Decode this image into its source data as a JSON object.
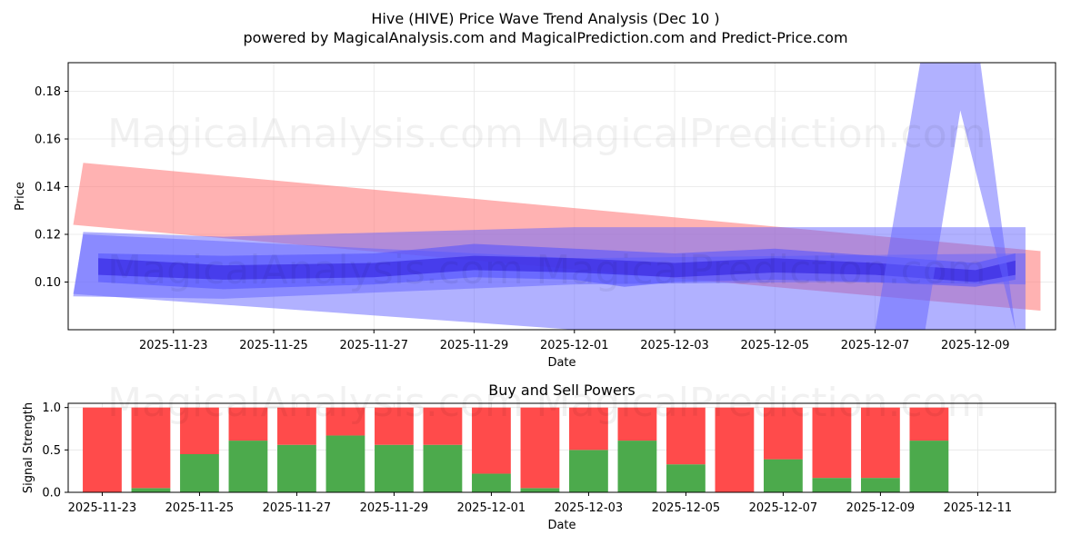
{
  "title_line1": "Hive (HIVE) Price Wave Trend Analysis (Dec 10 )",
  "title_line2": "powered by MagicalAnalysis.com and MagicalPrediction.com and Predict-Price.com",
  "watermarks": [
    "MagicalAnalysis.com",
    "MagicalPrediction.com"
  ],
  "colors": {
    "red_band": "#ff7f7f",
    "blue_band": "#6464ff",
    "buy": "#4caa4c",
    "sell": "#ff4b4b",
    "grid": "#e6e6e6"
  },
  "chart_data": [
    {
      "type": "area",
      "title": "",
      "xlabel": "Date",
      "ylabel": "Price",
      "x_start": "2025-11-21",
      "xlim": [
        -0.1,
        19.6
      ],
      "ylim": [
        0.08,
        0.192
      ],
      "xticks": [
        {
          "label": "2025-11-23",
          "x": 2
        },
        {
          "label": "2025-11-25",
          "x": 4
        },
        {
          "label": "2025-11-27",
          "x": 6
        },
        {
          "label": "2025-11-29",
          "x": 8
        },
        {
          "label": "2025-12-01",
          "x": 10
        },
        {
          "label": "2025-12-03",
          "x": 12
        },
        {
          "label": "2025-12-05",
          "x": 14
        },
        {
          "label": "2025-12-07",
          "x": 16
        },
        {
          "label": "2025-12-09",
          "x": 18
        }
      ],
      "yticks": [
        0.1,
        0.12,
        0.14,
        0.16,
        0.18
      ],
      "ytick_labels": [
        "0.10",
        "0.12",
        "0.14",
        "0.16",
        "0.18"
      ],
      "grid": true,
      "series": [
        {
          "name": "red trend band",
          "color": "#ff7f7f",
          "opacity": 0.6,
          "upper": [
            [
              0.2,
              0.15
            ],
            [
              19.3,
              0.113
            ]
          ],
          "lower": [
            [
              0.0,
              0.124
            ],
            [
              19.3,
              0.088
            ]
          ]
        },
        {
          "name": "blue wide band",
          "color": "#6464ff",
          "opacity": 0.5,
          "upper": [
            [
              0.2,
              0.121
            ],
            [
              3.0,
              0.119
            ],
            [
              10.0,
              0.123
            ],
            [
              19.0,
              0.123
            ]
          ],
          "lower": [
            [
              0.0,
              0.094
            ],
            [
              3.0,
              0.093
            ],
            [
              10.0,
              0.099
            ],
            [
              15.0,
              0.1
            ],
            [
              19.0,
              0.099
            ]
          ]
        },
        {
          "name": "blue outer range",
          "color": "#6464ff",
          "opacity": 0.5,
          "upper": [
            [
              0.2,
              0.12
            ],
            [
              10.0,
              0.11
            ],
            [
              19.0,
              0.112
            ]
          ],
          "lower": [
            [
              0.0,
              0.095
            ],
            [
              10.0,
              0.08
            ],
            [
              19.0,
              0.08
            ]
          ]
        },
        {
          "name": "blue inner wave",
          "color": "#5050ff",
          "opacity": 0.55,
          "upper": [
            [
              0.5,
              0.112
            ],
            [
              3.0,
              0.111
            ],
            [
              6.0,
              0.112
            ],
            [
              8.0,
              0.116
            ],
            [
              10.0,
              0.114
            ],
            [
              12.0,
              0.112
            ],
            [
              14.0,
              0.114
            ],
            [
              16.0,
              0.111
            ],
            [
              18.0,
              0.108
            ],
            [
              18.8,
              0.112
            ]
          ],
          "lower": [
            [
              0.5,
              0.1
            ],
            [
              3.0,
              0.097
            ],
            [
              6.0,
              0.099
            ],
            [
              8.0,
              0.102
            ],
            [
              10.0,
              0.101
            ],
            [
              11.0,
              0.098
            ],
            [
              12.0,
              0.1
            ],
            [
              14.0,
              0.101
            ],
            [
              16.0,
              0.1
            ],
            [
              18.0,
              0.098
            ],
            [
              18.8,
              0.101
            ]
          ]
        },
        {
          "name": "blue core wave",
          "color": "#3020e0",
          "opacity": 0.6,
          "upper": [
            [
              0.5,
              0.11
            ],
            [
              3.0,
              0.107
            ],
            [
              6.0,
              0.108
            ],
            [
              8.0,
              0.111
            ],
            [
              10.0,
              0.11
            ],
            [
              12.0,
              0.108
            ],
            [
              14.0,
              0.11
            ],
            [
              16.0,
              0.108
            ],
            [
              18.0,
              0.105
            ],
            [
              18.8,
              0.109
            ]
          ],
          "lower": [
            [
              0.5,
              0.103
            ],
            [
              3.0,
              0.101
            ],
            [
              6.0,
              0.102
            ],
            [
              8.0,
              0.105
            ],
            [
              10.0,
              0.104
            ],
            [
              12.0,
              0.102
            ],
            [
              14.0,
              0.104
            ],
            [
              16.0,
              0.103
            ],
            [
              18.0,
              0.1
            ],
            [
              18.8,
              0.103
            ]
          ]
        },
        {
          "name": "blue spike (left leg)",
          "color": "#6464ff",
          "opacity": 0.5,
          "upper": [
            [
              16.0,
              0.08
            ],
            [
              16.9,
              0.192
            ],
            [
              18.1,
              0.192
            ]
          ],
          "lower": [
            [
              17.0,
              0.08
            ],
            [
              17.7,
              0.172
            ],
            [
              18.8,
              0.08
            ]
          ]
        }
      ]
    },
    {
      "type": "bar",
      "title": "Buy and Sell Powers",
      "xlabel": "Date",
      "ylabel": "Signal Strength",
      "xlim": [
        -0.7,
        19.6
      ],
      "ylim": [
        0,
        1.05
      ],
      "yticks": [
        0.0,
        0.5,
        1.0
      ],
      "ytick_labels": [
        "0.0",
        "0.5",
        "1.0"
      ],
      "xticks": [
        {
          "label": "2025-11-23",
          "x": 0
        },
        {
          "label": "2025-11-25",
          "x": 2
        },
        {
          "label": "2025-11-27",
          "x": 4
        },
        {
          "label": "2025-11-29",
          "x": 6
        },
        {
          "label": "2025-12-01",
          "x": 8
        },
        {
          "label": "2025-12-03",
          "x": 10
        },
        {
          "label": "2025-12-05",
          "x": 12
        },
        {
          "label": "2025-12-07",
          "x": 14
        },
        {
          "label": "2025-12-09",
          "x": 16
        },
        {
          "label": "2025-12-11",
          "x": 18
        }
      ],
      "categories": [
        "2025-11-23",
        "2025-11-24",
        "2025-11-25",
        "2025-11-26",
        "2025-11-27",
        "2025-11-28",
        "2025-11-29",
        "2025-11-30",
        "2025-12-01",
        "2025-12-02",
        "2025-12-03",
        "2025-12-04",
        "2025-12-05",
        "2025-12-06",
        "2025-12-07",
        "2025-12-08",
        "2025-12-09",
        "2025-12-10"
      ],
      "series": [
        {
          "name": "Buy",
          "color": "#4caa4c",
          "values": [
            0.0,
            0.05,
            0.45,
            0.61,
            0.56,
            0.67,
            0.56,
            0.56,
            0.22,
            0.05,
            0.5,
            0.61,
            0.33,
            0.0,
            0.39,
            0.17,
            0.17,
            0.61
          ]
        },
        {
          "name": "Sell",
          "color": "#ff4b4b",
          "values": [
            1.0,
            0.95,
            0.55,
            0.39,
            0.44,
            0.33,
            0.44,
            0.44,
            0.78,
            0.95,
            0.5,
            0.39,
            0.67,
            1.0,
            0.61,
            0.83,
            0.83,
            0.39
          ]
        }
      ]
    }
  ]
}
